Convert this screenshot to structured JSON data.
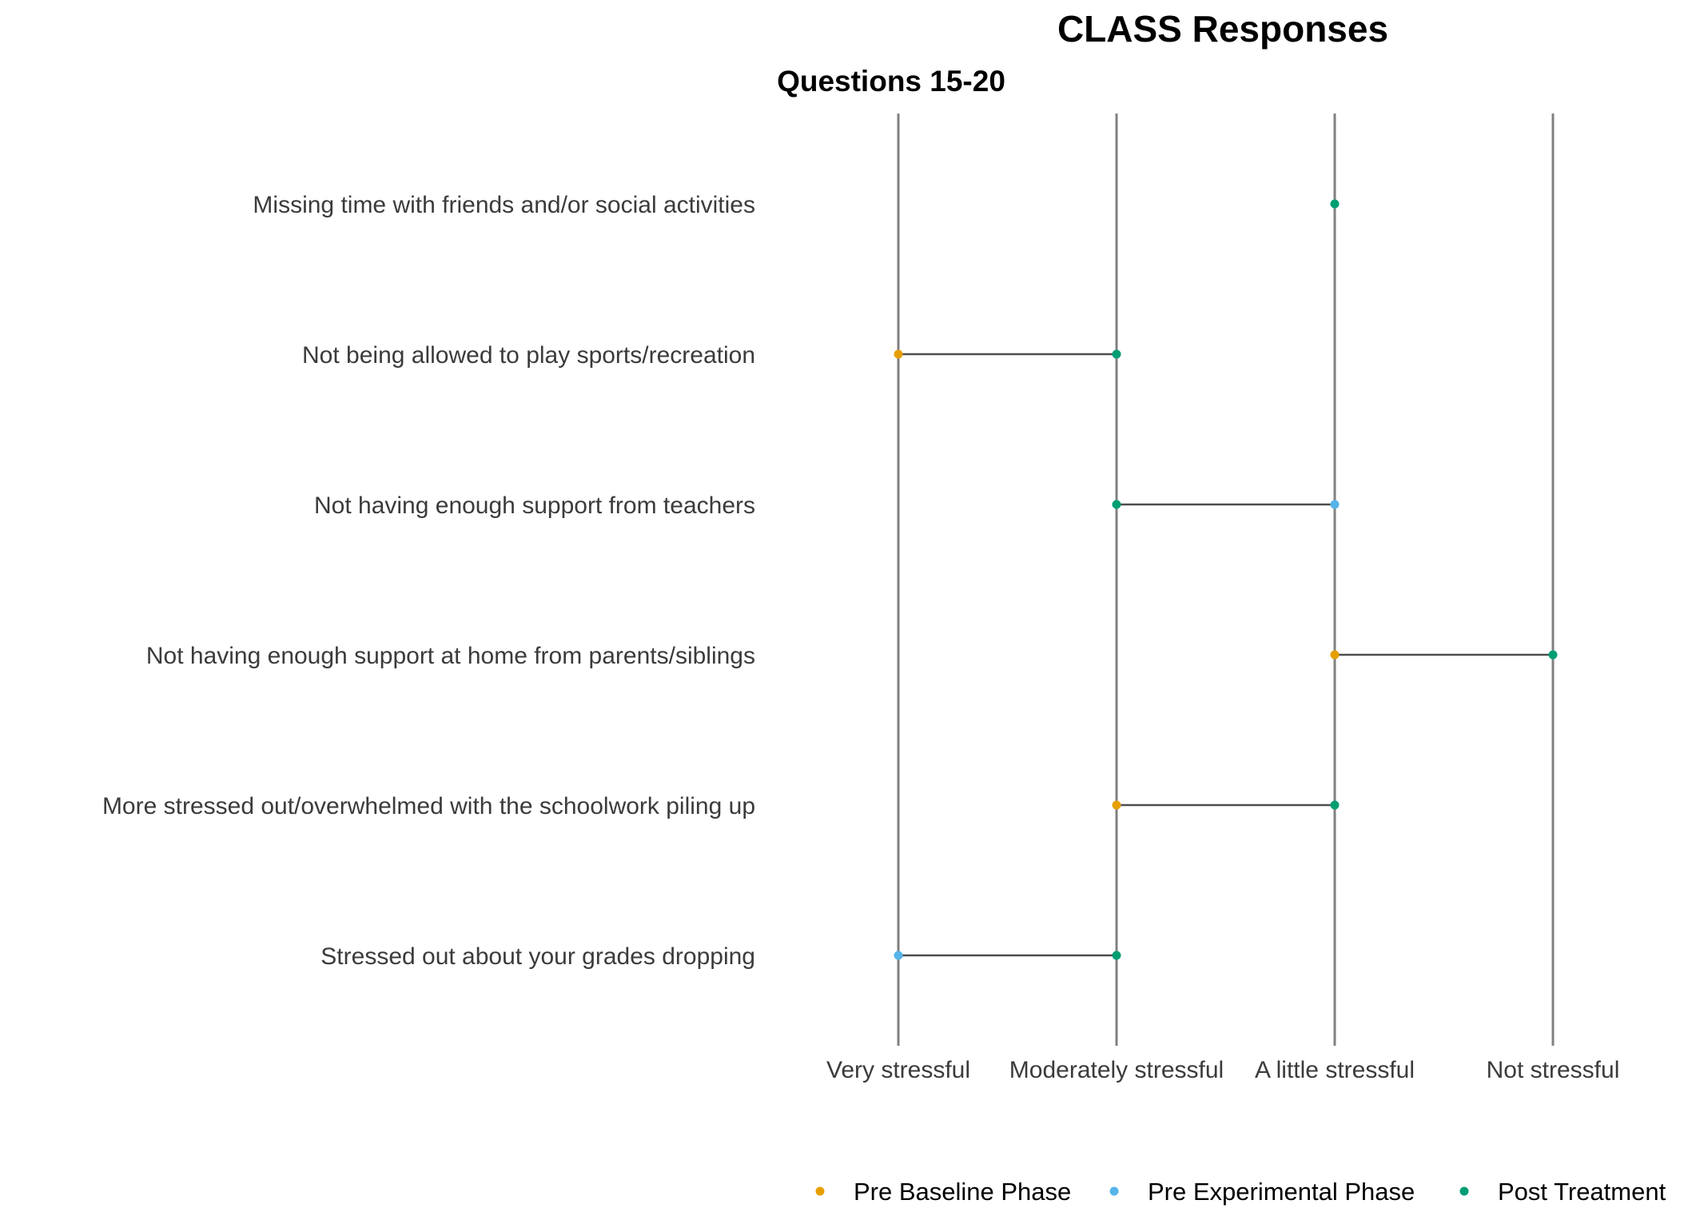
{
  "chart_data": {
    "type": "dumbbell",
    "title": "CLASS Responses",
    "subtitle": "Questions 15-20",
    "x_categories": [
      "Very stressful",
      "Moderately stressful",
      "A little stressful",
      "Not stressful"
    ],
    "questions": [
      "Missing time with friends and/or social activities",
      "Not being allowed to play sports/recreation",
      "Not having enough support from teachers",
      "Not having enough support at home from parents/siblings",
      "More stressed out/overwhelmed with the schoolwork piling up",
      "Stressed out about your grades dropping"
    ],
    "series": [
      {
        "name": "Pre Baseline Phase",
        "color": "#E69F00",
        "points": [
          {
            "question": "Not being allowed to play sports/recreation",
            "x": "Very stressful"
          },
          {
            "question": "Not having enough support at home from parents/siblings",
            "x": "A little stressful"
          },
          {
            "question": "More stressed out/overwhelmed with the schoolwork piling up",
            "x": "Moderately stressful"
          }
        ]
      },
      {
        "name": "Pre Experimental Phase",
        "color": "#56B4E9",
        "points": [
          {
            "question": "Not having enough support from teachers",
            "x": "A little stressful"
          },
          {
            "question": "Stressed out about your grades dropping",
            "x": "Very stressful"
          }
        ]
      },
      {
        "name": "Post Treatment",
        "color": "#009E73",
        "points": [
          {
            "question": "Missing time with friends and/or social activities",
            "x": "A little stressful"
          },
          {
            "question": "Not being allowed to play sports/recreation",
            "x": "Moderately stressful"
          },
          {
            "question": "Not having enough support from teachers",
            "x": "Moderately stressful"
          },
          {
            "question": "Not having enough support at home from parents/siblings",
            "x": "Not stressful"
          },
          {
            "question": "More stressed out/overwhelmed with the schoolwork piling up",
            "x": "A little stressful"
          },
          {
            "question": "Stressed out about your grades dropping",
            "x": "Moderately stressful"
          }
        ]
      }
    ],
    "legend_position": "bottom",
    "grid": "vertical lines at each category",
    "colors": {
      "gridline": "#808080",
      "connector": "#4d4d4d",
      "label_text": "#3b3b3b"
    }
  }
}
